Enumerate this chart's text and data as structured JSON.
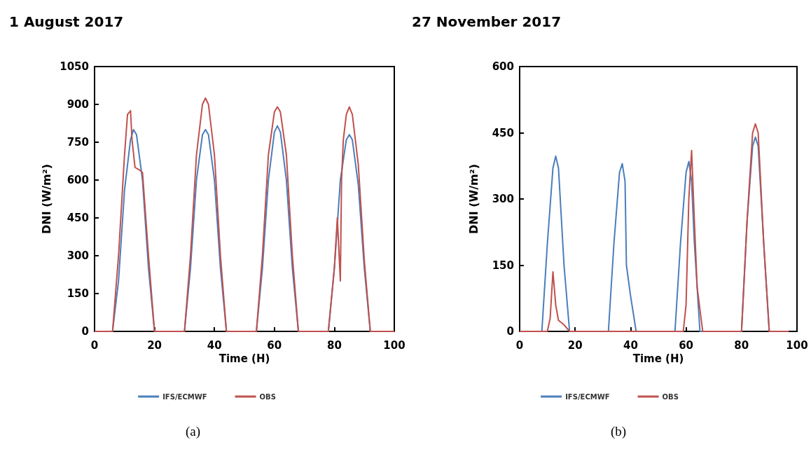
{
  "chart_data": [
    {
      "type": "line",
      "title": "1 August 2017",
      "xlabel": "Time (H)",
      "ylabel": "DNI (W/m²)",
      "xlim": [
        0,
        100
      ],
      "xticks": [
        0,
        20,
        40,
        60,
        80,
        100
      ],
      "ylim": [
        0,
        1050
      ],
      "yticks": [
        0,
        150,
        300,
        450,
        600,
        750,
        900,
        1050
      ],
      "grid": false,
      "legend": "bottom",
      "marker": "none",
      "line_style": "solid",
      "annotations": [
        "(a)"
      ],
      "series": [
        {
          "name": "IFS/ECMWF",
          "color": "#4a7ebb",
          "x": [
            0,
            6,
            8,
            10,
            12,
            13,
            14,
            16,
            18,
            20,
            30,
            32,
            34,
            36,
            37,
            38,
            40,
            42,
            44,
            54,
            56,
            58,
            60,
            61,
            62,
            64,
            66,
            68,
            78,
            80,
            82,
            84,
            85,
            86,
            88,
            90,
            92,
            100
          ],
          "values": [
            0,
            0,
            200,
            560,
            760,
            800,
            780,
            600,
            250,
            0,
            0,
            250,
            600,
            780,
            800,
            780,
            600,
            250,
            0,
            0,
            250,
            600,
            790,
            815,
            790,
            600,
            250,
            0,
            0,
            250,
            600,
            760,
            780,
            760,
            580,
            250,
            0,
            0
          ]
        },
        {
          "name": "OBS",
          "color": "#c0504d",
          "x": [
            0,
            6,
            8,
            10,
            11,
            12,
            12.5,
            13.5,
            15,
            16,
            18,
            20,
            30,
            32,
            34,
            36,
            37,
            38,
            40,
            42,
            44,
            54,
            56,
            58,
            60,
            61,
            62,
            64,
            66,
            68,
            78,
            80,
            81,
            82,
            82.4,
            83,
            84,
            85,
            86,
            88,
            90,
            92,
            100
          ],
          "values": [
            0,
            0,
            300,
            700,
            860,
            875,
            760,
            650,
            640,
            630,
            300,
            0,
            0,
            300,
            700,
            900,
            925,
            900,
            700,
            300,
            0,
            0,
            300,
            700,
            870,
            890,
            870,
            700,
            300,
            0,
            0,
            250,
            450,
            200,
            600,
            760,
            860,
            890,
            860,
            660,
            280,
            0,
            0
          ]
        }
      ]
    },
    {
      "type": "line",
      "title": "27 November 2017",
      "xlabel": "Time (H)",
      "ylabel": "DNI (W/m²)",
      "xlim": [
        0,
        100
      ],
      "xticks": [
        0,
        20,
        40,
        60,
        80,
        100
      ],
      "ylim": [
        0,
        600
      ],
      "yticks": [
        0,
        150,
        300,
        450,
        600
      ],
      "grid": false,
      "legend": "bottom",
      "marker": "none",
      "line_style": "solid",
      "annotations": [
        "(b)"
      ],
      "series": [
        {
          "name": "IFS/ECMWF",
          "color": "#4a7ebb",
          "x": [
            0,
            8,
            10,
            12,
            13,
            14,
            16,
            18,
            32,
            34,
            36,
            37,
            38,
            38.5,
            40,
            42,
            56,
            58,
            60,
            61,
            62,
            63,
            65,
            80,
            82,
            84,
            85,
            86,
            88,
            90,
            97
          ],
          "values": [
            0,
            0,
            200,
            370,
            397,
            370,
            150,
            0,
            0,
            200,
            360,
            380,
            340,
            150,
            80,
            0,
            0,
            200,
            360,
            385,
            340,
            200,
            0,
            0,
            250,
            420,
            440,
            420,
            200,
            0,
            0
          ]
        },
        {
          "name": "OBS",
          "color": "#c0504d",
          "x": [
            0,
            10,
            11,
            12,
            13,
            14,
            16,
            18,
            59,
            60,
            61,
            62,
            63,
            64,
            66,
            80,
            82,
            84,
            85,
            86,
            88,
            90,
            97
          ],
          "values": [
            0,
            0,
            30,
            135,
            60,
            25,
            15,
            0,
            0,
            60,
            300,
            410,
            250,
            100,
            0,
            0,
            250,
            450,
            470,
            450,
            200,
            0,
            0
          ]
        }
      ]
    }
  ]
}
